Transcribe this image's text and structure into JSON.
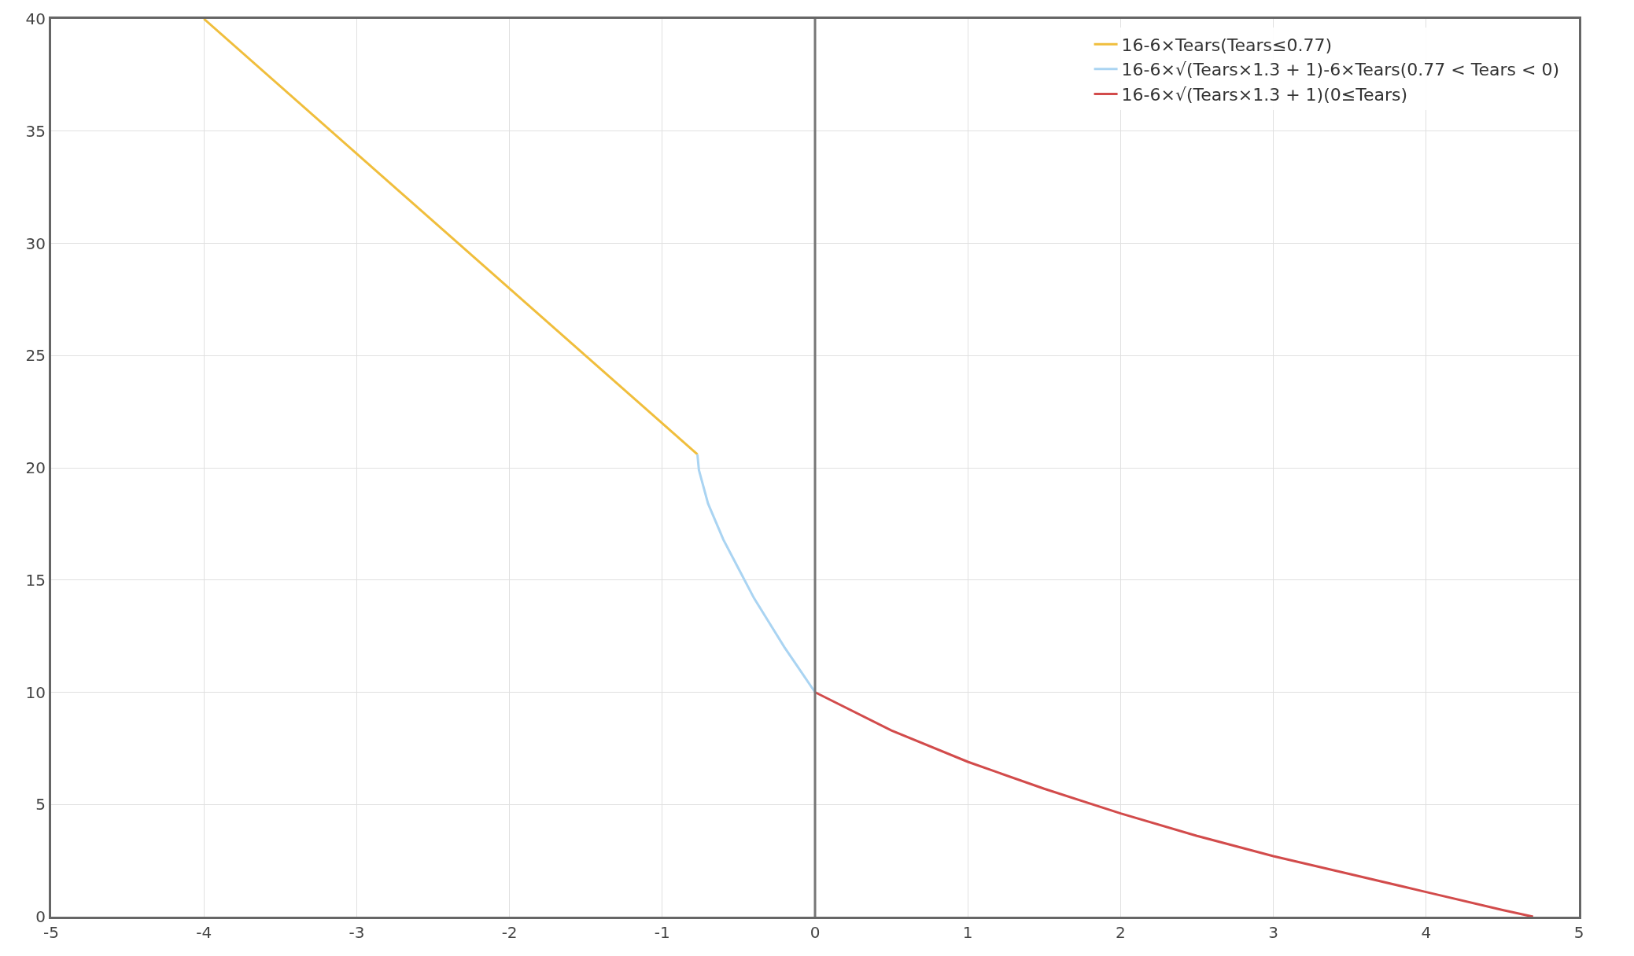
{
  "chart_data": {
    "type": "line",
    "series": [
      {
        "name": "16-6×Tears(Tears≤0.77)",
        "color": "#f0be3c",
        "x": [
          -4,
          -0.77
        ],
        "values": [
          40,
          20.6
        ]
      },
      {
        "name": "16-6×√(Tears×1.3 + 1)-6×Tears(0.77 < Tears < 0)",
        "color": "#aad4f2",
        "x": [
          -0.77,
          -0.76,
          -0.7,
          -0.6,
          -0.5,
          -0.4,
          -0.3,
          -0.2,
          -0.1,
          0
        ],
        "values": [
          20.6,
          19.9,
          18.4,
          16.8,
          15.5,
          14.2,
          13.1,
          12.0,
          11.0,
          10
        ]
      },
      {
        "name": "16-6×√(Tears×1.3 + 1)(0≤Tears)",
        "color": "#d24b4b",
        "x": [
          0,
          0.5,
          1,
          1.5,
          2,
          2.5,
          3,
          3.5,
          4,
          4.5,
          4.7
        ],
        "values": [
          10,
          8.3,
          6.9,
          5.7,
          4.6,
          3.6,
          2.7,
          1.9,
          1.1,
          0.3,
          0
        ]
      }
    ],
    "xlim": [
      -5,
      5
    ],
    "xticks": [
      -5,
      -4,
      -3,
      -2,
      -1,
      0,
      1,
      2,
      3,
      4,
      5
    ],
    "ylim": [
      0,
      40
    ],
    "yticks": [
      0,
      5,
      10,
      15,
      20,
      25,
      30,
      35,
      40
    ],
    "grid": true,
    "legend": "top right",
    "marker": "none",
    "line_style": "solid"
  }
}
